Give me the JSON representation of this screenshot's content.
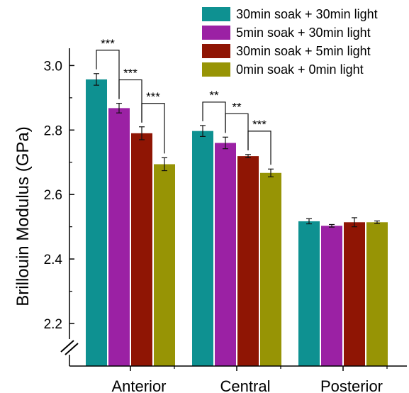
{
  "chart_data": {
    "type": "bar",
    "ylabel": "Brillouin Modulus (GPa)",
    "xlabel": "",
    "categories": [
      "Anterior",
      "Central",
      "Posterior"
    ],
    "ylim": [
      2.0,
      3.1
    ],
    "axis_break": true,
    "y_ticks": [
      "2.2",
      "2.4",
      "2.6",
      "2.8",
      "3.0"
    ],
    "y_tick_values": [
      2.2,
      2.4,
      2.6,
      2.8,
      3.0
    ],
    "legend_position": "top-right",
    "series": [
      {
        "name": "30min soak + 30min light",
        "color": "#0e9191",
        "values": [
          2.957,
          2.797,
          2.517
        ],
        "errors": [
          0.018,
          0.017,
          0.008
        ]
      },
      {
        "name": "5min soak + 30min light",
        "color": "#9b21a4",
        "values": [
          2.868,
          2.76,
          2.503
        ],
        "errors": [
          0.015,
          0.018,
          0.004
        ]
      },
      {
        "name": "30min soak + 5min light",
        "color": "#8f1504",
        "values": [
          2.79,
          2.719,
          2.514
        ],
        "errors": [
          0.02,
          0.005,
          0.014
        ]
      },
      {
        "name": "0min soak + 0min light",
        "color": "#979405",
        "values": [
          2.694,
          2.667,
          2.514
        ],
        "errors": [
          0.02,
          0.012,
          0.004
        ]
      }
    ],
    "significance": [
      {
        "category": 0,
        "from": 0,
        "to": 1,
        "label": "***"
      },
      {
        "category": 0,
        "from": 1,
        "to": 2,
        "label": "***"
      },
      {
        "category": 0,
        "from": 2,
        "to": 3,
        "label": "***"
      },
      {
        "category": 1,
        "from": 0,
        "to": 1,
        "label": "**"
      },
      {
        "category": 1,
        "from": 1,
        "to": 2,
        "label": "**"
      },
      {
        "category": 1,
        "from": 2,
        "to": 3,
        "label": "***"
      }
    ]
  }
}
